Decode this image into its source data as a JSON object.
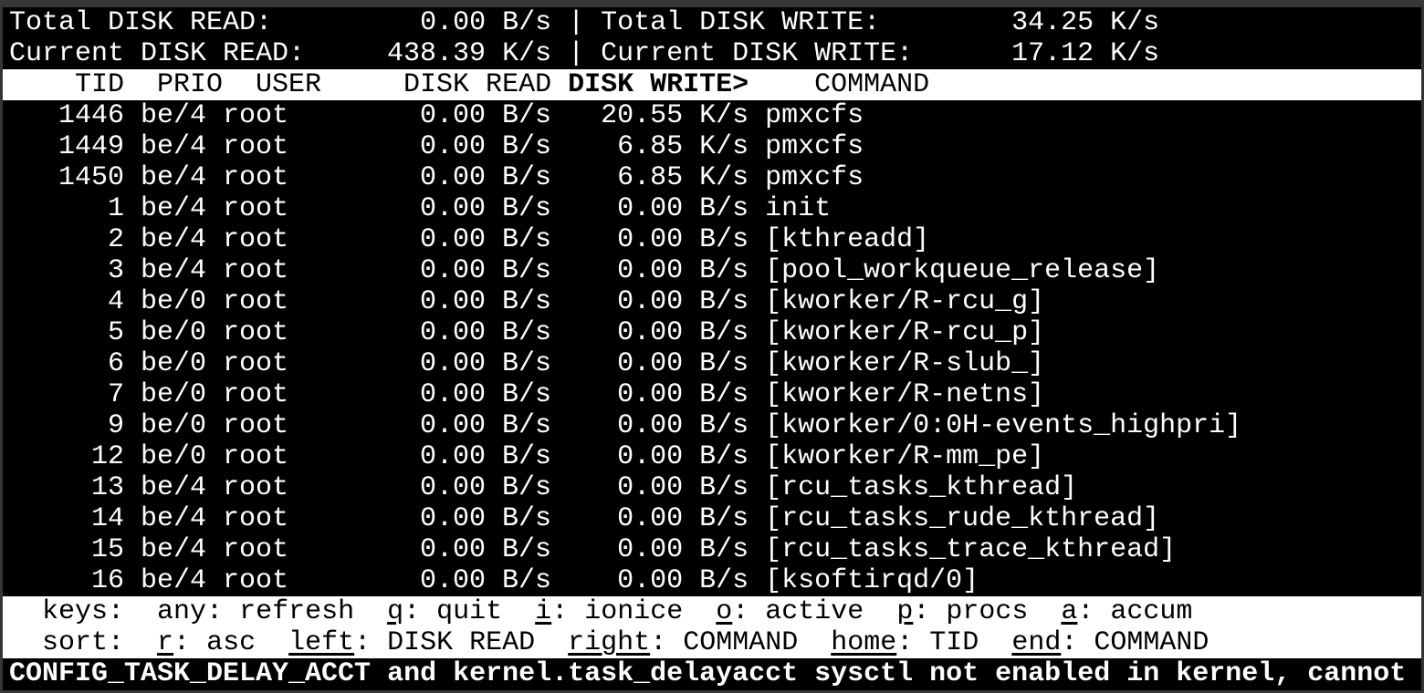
{
  "summary": {
    "total_read_label": "Total DISK READ:",
    "total_read_value": "0.00 B/s",
    "total_write_label": "Total DISK WRITE:",
    "total_write_value": "34.25 K/s",
    "current_read_label": "Current DISK READ:",
    "current_read_value": "438.39 K/s",
    "current_write_label": "Current DISK WRITE:",
    "current_write_value": "17.12 K/s",
    "separator": "|"
  },
  "columns": {
    "tid": "TID",
    "prio": "PRIO",
    "user": "USER",
    "read": "DISK READ",
    "write": "DISK WRITE>",
    "command": "COMMAND",
    "sorted": "write"
  },
  "rows": [
    {
      "tid": "1446",
      "prio": "be/4",
      "user": "root",
      "read": "0.00 B/s",
      "write": "20.55 K/s",
      "command": "pmxcfs"
    },
    {
      "tid": "1449",
      "prio": "be/4",
      "user": "root",
      "read": "0.00 B/s",
      "write": "6.85 K/s",
      "command": "pmxcfs"
    },
    {
      "tid": "1450",
      "prio": "be/4",
      "user": "root",
      "read": "0.00 B/s",
      "write": "6.85 K/s",
      "command": "pmxcfs"
    },
    {
      "tid": "1",
      "prio": "be/4",
      "user": "root",
      "read": "0.00 B/s",
      "write": "0.00 B/s",
      "command": "init"
    },
    {
      "tid": "2",
      "prio": "be/4",
      "user": "root",
      "read": "0.00 B/s",
      "write": "0.00 B/s",
      "command": "[kthreadd]"
    },
    {
      "tid": "3",
      "prio": "be/4",
      "user": "root",
      "read": "0.00 B/s",
      "write": "0.00 B/s",
      "command": "[pool_workqueue_release]"
    },
    {
      "tid": "4",
      "prio": "be/0",
      "user": "root",
      "read": "0.00 B/s",
      "write": "0.00 B/s",
      "command": "[kworker/R-rcu_g]"
    },
    {
      "tid": "5",
      "prio": "be/0",
      "user": "root",
      "read": "0.00 B/s",
      "write": "0.00 B/s",
      "command": "[kworker/R-rcu_p]"
    },
    {
      "tid": "6",
      "prio": "be/0",
      "user": "root",
      "read": "0.00 B/s",
      "write": "0.00 B/s",
      "command": "[kworker/R-slub_]"
    },
    {
      "tid": "7",
      "prio": "be/0",
      "user": "root",
      "read": "0.00 B/s",
      "write": "0.00 B/s",
      "command": "[kworker/R-netns]"
    },
    {
      "tid": "9",
      "prio": "be/0",
      "user": "root",
      "read": "0.00 B/s",
      "write": "0.00 B/s",
      "command": "[kworker/0:0H-events_highpri]"
    },
    {
      "tid": "12",
      "prio": "be/0",
      "user": "root",
      "read": "0.00 B/s",
      "write": "0.00 B/s",
      "command": "[kworker/R-mm_pe]"
    },
    {
      "tid": "13",
      "prio": "be/4",
      "user": "root",
      "read": "0.00 B/s",
      "write": "0.00 B/s",
      "command": "[rcu_tasks_kthread]"
    },
    {
      "tid": "14",
      "prio": "be/4",
      "user": "root",
      "read": "0.00 B/s",
      "write": "0.00 B/s",
      "command": "[rcu_tasks_rude_kthread]"
    },
    {
      "tid": "15",
      "prio": "be/4",
      "user": "root",
      "read": "0.00 B/s",
      "write": "0.00 B/s",
      "command": "[rcu_tasks_trace_kthread]"
    },
    {
      "tid": "16",
      "prio": "be/4",
      "user": "root",
      "read": "0.00 B/s",
      "write": "0.00 B/s",
      "command": "[ksoftirqd/0]"
    }
  ],
  "footer": {
    "keys_label": "keys:",
    "keys": [
      {
        "key": "any",
        "underline": false,
        "action": "refresh"
      },
      {
        "key": "q",
        "underline": true,
        "action": "quit"
      },
      {
        "key": "i",
        "underline": true,
        "action": "ionice"
      },
      {
        "key": "o",
        "underline": true,
        "action": "active"
      },
      {
        "key": "p",
        "underline": true,
        "action": "procs"
      },
      {
        "key": "a",
        "underline": true,
        "action": "accum"
      }
    ],
    "sort_label": "sort:",
    "sort": [
      {
        "key": "r",
        "underline": true,
        "action": "asc"
      },
      {
        "key": "left",
        "underline": true,
        "action": "DISK READ"
      },
      {
        "key": "right",
        "underline": true,
        "action": "COMMAND"
      },
      {
        "key": "home",
        "underline": true,
        "action": "TID"
      },
      {
        "key": "end",
        "underline": true,
        "action": "COMMAND"
      }
    ]
  },
  "warning": "CONFIG_TASK_DELAY_ACCT and kernel.task_delayacct sysctl not enabled in kernel, cannot"
}
